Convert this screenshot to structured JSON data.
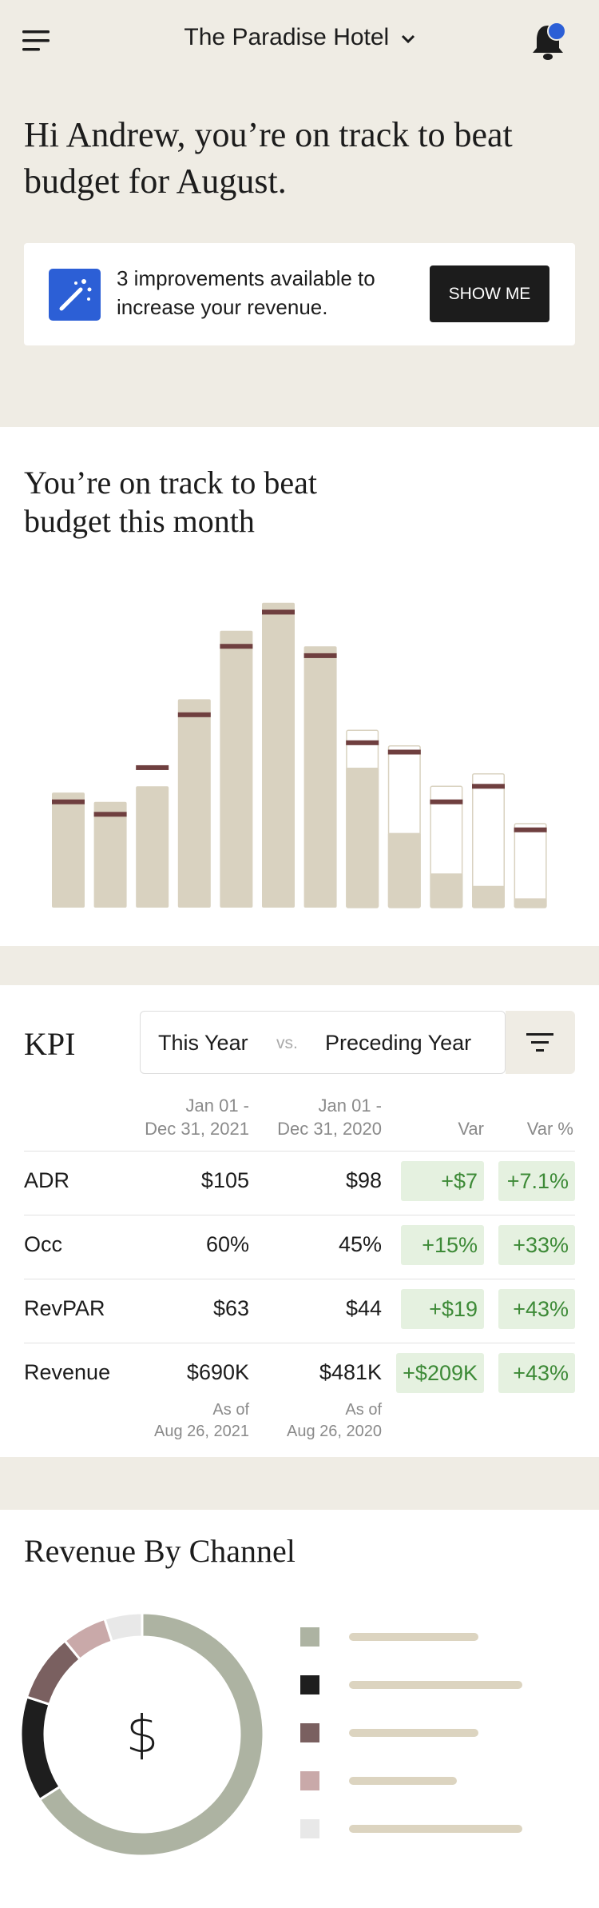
{
  "header": {
    "hotel": "The Paradise Hotel"
  },
  "greeting": "Hi Andrew, you’re on track to beat budget for August.",
  "banner": {
    "text": "3 improvements available to increase your revenue.",
    "button": "SHOW ME"
  },
  "chart_data": [
    {
      "type": "bar",
      "title": "You’re on track to beat budget this month",
      "ylim": [
        0,
        100
      ],
      "series": [
        {
          "name": "actual",
          "color": "#d9d2c0",
          "values": [
            37,
            34,
            39,
            67,
            89,
            98,
            84,
            45,
            24,
            11,
            7,
            3
          ]
        },
        {
          "name": "forecast",
          "color": "#ffffff",
          "values": [
            null,
            null,
            null,
            null,
            null,
            null,
            null,
            57,
            52,
            39,
            43,
            27
          ]
        },
        {
          "name": "budget",
          "color": "#6f3f3f",
          "values": [
            34,
            30,
            45,
            62,
            84,
            95,
            81,
            53,
            50,
            34,
            39,
            25
          ]
        }
      ]
    },
    {
      "type": "pie",
      "title": "Revenue By Channel",
      "center_label": "$",
      "values": [
        66,
        14,
        9,
        6,
        5
      ],
      "colors": [
        "#adb3a2",
        "#1e1e1e",
        "#7a6060",
        "#c9a9a9",
        "#e8e8e8"
      ]
    }
  ],
  "kpi": {
    "title": "KPI",
    "toggle": [
      "This Year",
      "vs.",
      "Preceding Year"
    ],
    "columns": [
      [
        "Jan 01 -",
        "Dec 31, 2021"
      ],
      [
        "Jan 01 -",
        "Dec 31, 2020"
      ],
      [
        "Var"
      ],
      [
        "Var %"
      ]
    ],
    "rows": [
      [
        "ADR",
        "$105",
        "$98",
        "+$7",
        "+7.1%"
      ],
      [
        "Occ",
        "60%",
        "45%",
        "+15%",
        "+33%"
      ],
      [
        "RevPAR",
        "$63",
        "$44",
        "+$19",
        "+43%"
      ],
      [
        "Revenue",
        "$690K",
        "$481K",
        "+$209K",
        "+43%"
      ]
    ],
    "notes": [
      [
        "As of",
        "Aug 26, 2021"
      ],
      [
        "As of",
        "Aug 26, 2020"
      ]
    ]
  }
}
